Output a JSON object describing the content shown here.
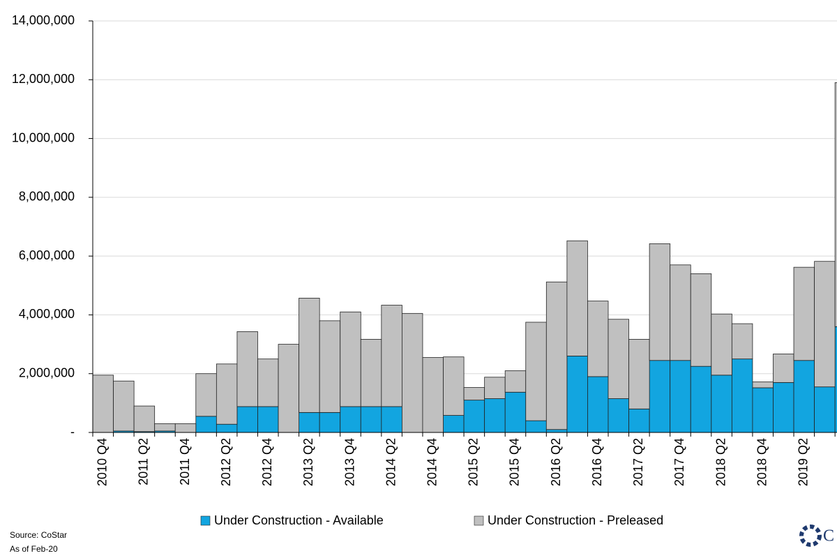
{
  "chart_data": {
    "type": "stacked-bar",
    "categories": [
      "2010 Q4",
      null,
      "2011 Q2",
      null,
      "2011 Q4",
      null,
      "2012 Q2",
      null,
      "2012 Q4",
      null,
      "2013 Q2",
      null,
      "2013 Q4",
      null,
      "2014 Q2",
      null,
      "2014 Q4",
      null,
      "2015 Q2",
      null,
      "2015 Q4",
      null,
      "2016 Q2",
      null,
      "2016 Q4",
      null,
      "2017 Q2",
      null,
      "2017 Q4",
      null,
      "2018 Q2",
      null,
      "2018 Q4",
      null,
      "2019 Q2",
      null,
      null
    ],
    "series": [
      {
        "name": "Under Construction - Available",
        "color": "#12a5e0",
        "values": [
          0,
          50000,
          30000,
          50000,
          0,
          550000,
          280000,
          880000,
          880000,
          0,
          680000,
          680000,
          880000,
          880000,
          880000,
          0,
          0,
          580000,
          1100000,
          1150000,
          1370000,
          400000,
          100000,
          2600000,
          1900000,
          1150000,
          800000,
          2450000,
          2450000,
          2250000,
          1950000,
          2500000,
          1520000,
          1700000,
          2450000,
          1550000,
          3600000
        ]
      },
      {
        "name": "Under Construction - Preleased",
        "color": "#c0c0c0",
        "values": [
          1950000,
          1700000,
          870000,
          250000,
          300000,
          1450000,
          2050000,
          2550000,
          1620000,
          3000000,
          3890000,
          3120000,
          3220000,
          2290000,
          3450000,
          4050000,
          2550000,
          1990000,
          430000,
          730000,
          730000,
          3350000,
          5020000,
          3920000,
          2570000,
          2700000,
          2370000,
          3970000,
          3250000,
          3150000,
          2080000,
          1200000,
          200000,
          970000,
          3170000,
          4270000,
          8300000
        ]
      }
    ],
    "ylim": [
      0,
      14000000
    ],
    "yticks": [
      {
        "value": 0,
        "label": "-"
      },
      {
        "value": 2000000,
        "label": "2,000,000"
      },
      {
        "value": 4000000,
        "label": "4,000,000"
      },
      {
        "value": 6000000,
        "label": "6,000,000"
      },
      {
        "value": 8000000,
        "label": "8,000,000"
      },
      {
        "value": 10000000,
        "label": "10,000,000"
      },
      {
        "value": 12000000,
        "label": "12,000,000"
      },
      {
        "value": 14000000,
        "label": "14,000,000"
      }
    ],
    "grid": true,
    "source": "Source: CoStar",
    "as_of": "As of Feb-20",
    "logo": "C"
  }
}
